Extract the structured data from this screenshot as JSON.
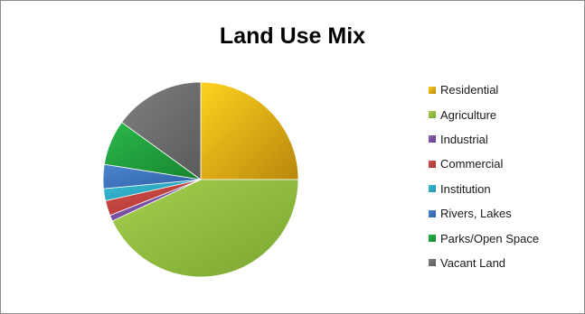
{
  "chart_data": {
    "type": "pie",
    "title": "Land Use Mix",
    "legend_position": "right",
    "start_angle_deg": 0,
    "direction": "clockwise",
    "slices": [
      {
        "label": "Residential",
        "value": 25.0,
        "color": "#e7a900",
        "color_light": "#ffd21f",
        "color_dark": "#b8870c"
      },
      {
        "label": "Agriculture",
        "value": 43.0,
        "color": "#8fbc3c",
        "color_light": "#a4cf4f",
        "color_dark": "#7ba630"
      },
      {
        "label": "Industrial",
        "value": 1.0,
        "color": "#7a4fa0",
        "color_light": "#8c62b3",
        "color_dark": "#673c8c"
      },
      {
        "label": "Commercial",
        "value": 2.5,
        "color": "#c0403c",
        "color_light": "#d4514c",
        "color_dark": "#a8322e"
      },
      {
        "label": "Institution",
        "value": 2.0,
        "color": "#27a9c6",
        "color_light": "#3cc0da",
        "color_dark": "#1f8fa8"
      },
      {
        "label": "Rivers, Lakes",
        "value": 4.0,
        "color": "#3b73c0",
        "color_light": "#4c86d1",
        "color_dark": "#2e5fa3"
      },
      {
        "label": "Parks/Open Space",
        "value": 7.5,
        "color": "#1f9e3c",
        "color_light": "#2bb84a",
        "color_dark": "#178430"
      },
      {
        "label": "Vacant Land",
        "value": 15.0,
        "color": "#6e6e6e",
        "color_light": "#808080",
        "color_dark": "#5a5a5a"
      }
    ]
  }
}
